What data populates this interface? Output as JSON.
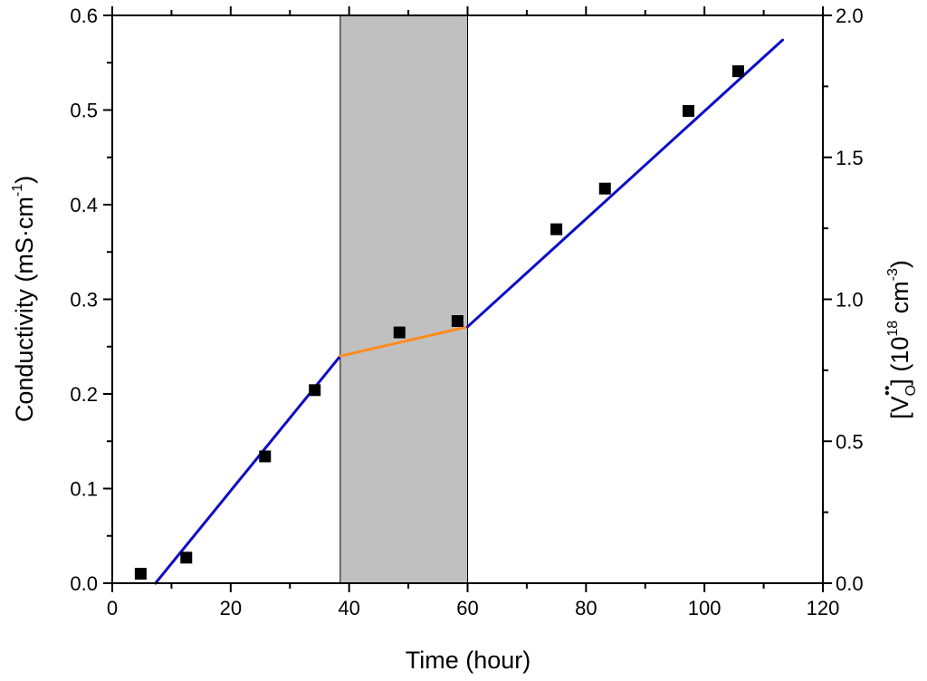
{
  "chart_data": {
    "type": "scatter",
    "xlabel": "Time (hour)",
    "ylabel": "Conductivity (mS·cm",
    "ylabel_sup": "-1",
    "ylabel_close": ")",
    "y2label_open": "[V",
    "y2label_sub": "O",
    "y2label_sup_dots": "••",
    "y2label_close": "] (10",
    "y2label_sup": "18",
    "y2label_unit": " cm",
    "y2label_unit_sup": "-3",
    "y2label_end": ")",
    "xlim": [
      0,
      120
    ],
    "ylim": [
      0,
      0.6
    ],
    "y2lim": [
      0,
      2.0
    ],
    "xticks": [
      "0",
      "20",
      "40",
      "60",
      "80",
      "100",
      "120"
    ],
    "yticks": [
      "0.0",
      "0.1",
      "0.2",
      "0.3",
      "0.4",
      "0.5",
      "0.6"
    ],
    "y2ticks": [
      "0.0",
      "0.5",
      "1.0",
      "1.5",
      "2.0"
    ],
    "shaded_region": {
      "x": [
        38.5,
        60
      ],
      "color": "#c0c0c0"
    },
    "points": {
      "x": [
        4.8,
        12.5,
        25.8,
        34.2,
        48.5,
        58.3,
        75.0,
        83.2,
        97.3,
        105.7
      ],
      "y": [
        0.01,
        0.027,
        0.134,
        0.204,
        0.265,
        0.277,
        0.374,
        0.417,
        0.499,
        0.541
      ],
      "color": "#000000"
    },
    "fit_lines": [
      {
        "x": [
          7.3,
          38.5
        ],
        "y": [
          0.0,
          0.24
        ],
        "color": "#0a0adc"
      },
      {
        "x": [
          38.5,
          60.0
        ],
        "y": [
          0.24,
          0.271
        ],
        "color": "#ff8c1a"
      },
      {
        "x": [
          60.0,
          113.2
        ],
        "y": [
          0.271,
          0.574
        ],
        "color": "#0a0adc"
      }
    ]
  }
}
